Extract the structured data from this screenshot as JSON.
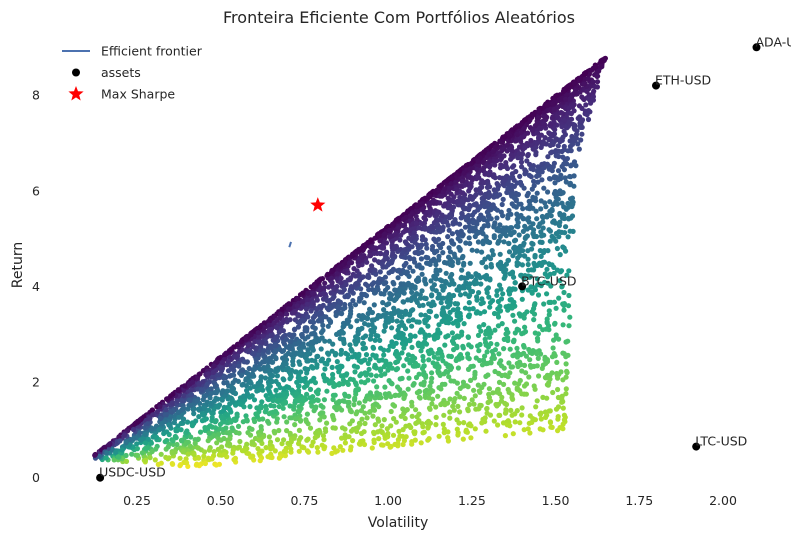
{
  "chart_data": {
    "type": "scatter",
    "title": "Fronteira Eficiente Com Portfólios Aleatórios",
    "xlabel": "Volatility",
    "ylabel": "Return",
    "xlim": [
      0.05,
      2.2
    ],
    "ylim": [
      -0.3,
      9.3
    ],
    "x_ticks": [
      "0.25",
      "0.50",
      "0.75",
      "1.00",
      "1.25",
      "1.50",
      "1.75",
      "2.00"
    ],
    "y_ticks": [
      "0",
      "2",
      "4",
      "6",
      "8"
    ],
    "grid": false,
    "legend_position": "top-left",
    "legend": [
      {
        "label": "Efficient frontier",
        "marker": "line",
        "color": "#4c72b0"
      },
      {
        "label": "assets",
        "marker": "dot",
        "color": "#000000"
      },
      {
        "label": "Max Sharpe",
        "marker": "star",
        "color": "#ff0000"
      }
    ],
    "colormap": "viridis",
    "random_portfolios": {
      "count": 5000,
      "region_vertices": [
        [
          0.11,
          0.4
        ],
        [
          1.65,
          8.8
        ],
        [
          1.56,
          6.5
        ],
        [
          1.53,
          1.0
        ],
        [
          0.4,
          0.2
        ]
      ]
    },
    "efficient_frontier": {
      "x": [
        0.705,
        0.71
      ],
      "y": [
        4.82,
        4.93
      ],
      "color": "#4c72b0"
    },
    "assets": [
      {
        "name": "ADA-USD",
        "x": 2.1,
        "y": 9.0
      },
      {
        "name": "ETH-USD",
        "x": 1.8,
        "y": 8.2
      },
      {
        "name": "BTC-USD",
        "x": 1.4,
        "y": 4.0
      },
      {
        "name": "LTC-USD",
        "x": 1.92,
        "y": 0.65
      },
      {
        "name": "USDC-USD",
        "x": 0.14,
        "y": 0.0
      }
    ],
    "max_sharpe": {
      "x": 0.79,
      "y": 5.7,
      "color": "#ff0000"
    }
  }
}
